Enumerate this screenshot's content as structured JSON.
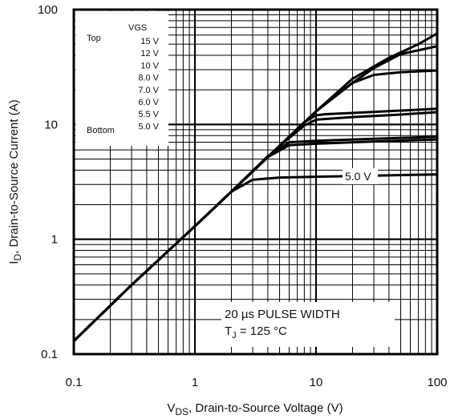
{
  "chart_data": {
    "type": "line",
    "xscale": "log",
    "yscale": "log",
    "xlim": [
      0.1,
      100
    ],
    "ylim": [
      0.1,
      100
    ],
    "grid": true,
    "x_tick_labels": [
      "0.1",
      "1",
      "10",
      "100"
    ],
    "y_tick_labels": [
      "0.1",
      "1",
      "10",
      "100"
    ],
    "xlabel": {
      "main": "V",
      "sub": "DS",
      "rest": ", Drain-to-Source Voltage (V)"
    },
    "ylabel": {
      "main": "I",
      "sub": "D",
      "rest": ", Drain-to-Source Current (A)"
    },
    "legend": {
      "position": "top-left",
      "header": "VGS",
      "top_label": "Top",
      "bottom_label": "Bottom",
      "entries": [
        "15 V",
        "12 V",
        "10 V",
        "8.0 V",
        "7.0 V",
        "6.0 V",
        "5.5 V",
        "5.0 V"
      ]
    },
    "annotations": {
      "curve_label": "5.0 V",
      "pulse_width": "20 µs PULSE WIDTH",
      "tj_main": "T",
      "tj_sub": "J",
      "tj_rest": " = 125 °C"
    },
    "series": [
      {
        "name": "15 V",
        "x": [
          0.1,
          0.3,
          1,
          2,
          5,
          10,
          20,
          40,
          70,
          100
        ],
        "y": [
          0.13,
          0.4,
          1.3,
          2.6,
          6.5,
          13,
          25,
          38,
          50,
          62
        ]
      },
      {
        "name": "12 V",
        "x": [
          0.1,
          0.3,
          1,
          2,
          5,
          10,
          20,
          30,
          50,
          100
        ],
        "y": [
          0.13,
          0.4,
          1.3,
          2.6,
          6.5,
          13,
          23,
          31,
          41,
          48
        ]
      },
      {
        "name": "10 V",
        "x": [
          0.1,
          0.3,
          1,
          2,
          5,
          10,
          20,
          30,
          50,
          100
        ],
        "y": [
          0.13,
          0.4,
          1.3,
          2.6,
          6.5,
          13,
          23,
          27,
          28.5,
          29.5
        ]
      },
      {
        "name": "8.0 V",
        "x": [
          0.1,
          0.3,
          1,
          2,
          5,
          8,
          10,
          12,
          20,
          50,
          100
        ],
        "y": [
          0.13,
          0.4,
          1.3,
          2.6,
          6.5,
          10.5,
          12,
          12.3,
          12.6,
          13.2,
          13.7
        ]
      },
      {
        "name": "7.0 V",
        "x": [
          0.1,
          0.3,
          1,
          2,
          5,
          8,
          10,
          20,
          50,
          100
        ],
        "y": [
          0.13,
          0.4,
          1.3,
          2.6,
          6.5,
          9.8,
          11,
          11.6,
          12.2,
          12.8
        ]
      },
      {
        "name": "6.0 V",
        "x": [
          0.1,
          0.3,
          1,
          2,
          4,
          6,
          8,
          10,
          30,
          100
        ],
        "y": [
          0.13,
          0.4,
          1.3,
          2.6,
          5.3,
          7,
          7.1,
          7.2,
          7.5,
          7.8
        ]
      },
      {
        "name": "5.5 V",
        "x": [
          0.1,
          0.3,
          1,
          2,
          4,
          6,
          10,
          30,
          100
        ],
        "y": [
          0.13,
          0.4,
          1.3,
          2.6,
          5.2,
          6.6,
          6.8,
          7.1,
          7.4
        ]
      },
      {
        "name": "5.0 V",
        "x": [
          0.1,
          0.3,
          1,
          2,
          3,
          5,
          10,
          30,
          70,
          100
        ],
        "y": [
          0.13,
          0.4,
          1.3,
          2.6,
          3.3,
          3.45,
          3.5,
          3.58,
          3.65,
          3.67
        ]
      }
    ]
  }
}
